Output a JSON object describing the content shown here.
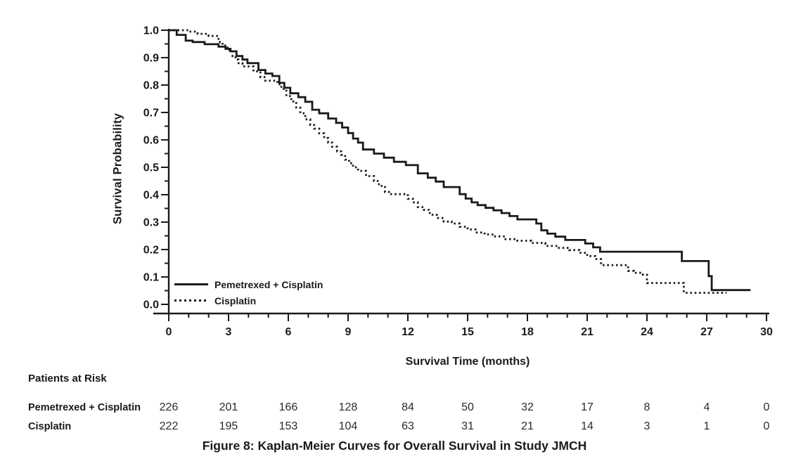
{
  "figure": {
    "caption": "Figure 8: Kaplan-Meier Curves for Overall Survival in Study JMCH"
  },
  "colors": {
    "ink": "#1a1a1a",
    "background": "#ffffff"
  },
  "chart_data": {
    "type": "line",
    "subtype": "kaplan-meier-step",
    "title": "",
    "xlabel": "Survival Time (months)",
    "ylabel": "Survival Probability",
    "xlim": [
      0,
      30
    ],
    "ylim": [
      0.0,
      1.0
    ],
    "x_major_ticks": [
      0,
      3,
      6,
      9,
      12,
      15,
      18,
      21,
      24,
      27,
      30
    ],
    "x_minor_step": 1,
    "y_major_step": 0.1,
    "y_minor_step": 0.05,
    "grid": false,
    "legend_position": "inside-bottom-left",
    "series": [
      {
        "name": "Pemetrexed + Cisplatin",
        "line_style": "solid",
        "color": "#1a1a1a",
        "points": [
          [
            0,
            1.0
          ],
          [
            0.4,
            0.983
          ],
          [
            0.85,
            0.962
          ],
          [
            1.2,
            0.957
          ],
          [
            1.8,
            0.949
          ],
          [
            2.5,
            0.94
          ],
          [
            2.85,
            0.932
          ],
          [
            3.1,
            0.923
          ],
          [
            3.4,
            0.906
          ],
          [
            3.7,
            0.893
          ],
          [
            3.95,
            0.88
          ],
          [
            4.5,
            0.855
          ],
          [
            4.85,
            0.842
          ],
          [
            5.2,
            0.833
          ],
          [
            5.55,
            0.808
          ],
          [
            5.8,
            0.79
          ],
          [
            6.1,
            0.77
          ],
          [
            6.5,
            0.756
          ],
          [
            6.85,
            0.739
          ],
          [
            7.2,
            0.71
          ],
          [
            7.55,
            0.697
          ],
          [
            8.0,
            0.678
          ],
          [
            8.4,
            0.662
          ],
          [
            8.7,
            0.645
          ],
          [
            9.0,
            0.625
          ],
          [
            9.25,
            0.605
          ],
          [
            9.5,
            0.59
          ],
          [
            9.75,
            0.565
          ],
          [
            10.3,
            0.55
          ],
          [
            10.8,
            0.535
          ],
          [
            11.3,
            0.52
          ],
          [
            11.9,
            0.508
          ],
          [
            12.5,
            0.478
          ],
          [
            13.0,
            0.462
          ],
          [
            13.4,
            0.448
          ],
          [
            13.8,
            0.428
          ],
          [
            14.6,
            0.402
          ],
          [
            14.9,
            0.386
          ],
          [
            15.2,
            0.372
          ],
          [
            15.5,
            0.362
          ],
          [
            15.9,
            0.352
          ],
          [
            16.3,
            0.343
          ],
          [
            16.7,
            0.333
          ],
          [
            17.1,
            0.322
          ],
          [
            17.5,
            0.31
          ],
          [
            18.45,
            0.295
          ],
          [
            18.7,
            0.27
          ],
          [
            19.0,
            0.258
          ],
          [
            19.4,
            0.247
          ],
          [
            19.9,
            0.235
          ],
          [
            20.9,
            0.222
          ],
          [
            21.3,
            0.208
          ],
          [
            21.65,
            0.192
          ],
          [
            25.75,
            0.158
          ],
          [
            27.1,
            0.103
          ],
          [
            27.25,
            0.052
          ],
          [
            29.2,
            0.052
          ]
        ]
      },
      {
        "name": "Cisplatin",
        "line_style": "dashed",
        "color": "#1a1a1a",
        "points": [
          [
            0,
            1.0
          ],
          [
            1.0,
            0.995
          ],
          [
            1.45,
            0.987
          ],
          [
            2.0,
            0.979
          ],
          [
            2.5,
            0.957
          ],
          [
            2.7,
            0.944
          ],
          [
            2.95,
            0.927
          ],
          [
            3.2,
            0.906
          ],
          [
            3.35,
            0.893
          ],
          [
            3.5,
            0.88
          ],
          [
            3.7,
            0.868
          ],
          [
            4.25,
            0.85
          ],
          [
            4.6,
            0.829
          ],
          [
            4.85,
            0.816
          ],
          [
            5.45,
            0.803
          ],
          [
            5.65,
            0.786
          ],
          [
            5.9,
            0.76
          ],
          [
            6.15,
            0.74
          ],
          [
            6.4,
            0.718
          ],
          [
            6.6,
            0.697
          ],
          [
            6.85,
            0.675
          ],
          [
            7.1,
            0.654
          ],
          [
            7.3,
            0.641
          ],
          [
            7.55,
            0.624
          ],
          [
            7.8,
            0.607
          ],
          [
            8.0,
            0.59
          ],
          [
            8.2,
            0.575
          ],
          [
            8.45,
            0.558
          ],
          [
            8.65,
            0.545
          ],
          [
            8.85,
            0.528
          ],
          [
            9.05,
            0.515
          ],
          [
            9.25,
            0.5
          ],
          [
            9.5,
            0.487
          ],
          [
            9.9,
            0.468
          ],
          [
            10.3,
            0.45
          ],
          [
            10.55,
            0.432
          ],
          [
            10.85,
            0.41
          ],
          [
            11.05,
            0.402
          ],
          [
            12.0,
            0.385
          ],
          [
            12.25,
            0.372
          ],
          [
            12.5,
            0.355
          ],
          [
            12.8,
            0.345
          ],
          [
            13.1,
            0.327
          ],
          [
            13.45,
            0.315
          ],
          [
            13.8,
            0.302
          ],
          [
            14.2,
            0.295
          ],
          [
            14.6,
            0.283
          ],
          [
            15.0,
            0.273
          ],
          [
            15.4,
            0.262
          ],
          [
            15.85,
            0.255
          ],
          [
            16.3,
            0.248
          ],
          [
            16.9,
            0.238
          ],
          [
            17.5,
            0.232
          ],
          [
            18.2,
            0.224
          ],
          [
            18.9,
            0.213
          ],
          [
            19.5,
            0.206
          ],
          [
            20.1,
            0.198
          ],
          [
            20.6,
            0.188
          ],
          [
            21.0,
            0.176
          ],
          [
            21.4,
            0.165
          ],
          [
            21.7,
            0.143
          ],
          [
            23.05,
            0.122
          ],
          [
            23.35,
            0.115
          ],
          [
            23.8,
            0.108
          ],
          [
            24.0,
            0.078
          ],
          [
            25.85,
            0.042
          ],
          [
            28.0,
            0.042
          ]
        ]
      }
    ]
  },
  "patients_at_risk": {
    "heading": "Patients at Risk",
    "time_points": [
      0,
      3,
      6,
      9,
      12,
      15,
      18,
      21,
      24,
      27,
      30
    ],
    "rows": [
      {
        "label": "Pemetrexed + Cisplatin",
        "counts": [
          226,
          201,
          166,
          128,
          84,
          50,
          32,
          17,
          8,
          4,
          0
        ]
      },
      {
        "label": "Cisplatin",
        "counts": [
          222,
          195,
          153,
          104,
          63,
          31,
          21,
          14,
          3,
          1,
          0
        ]
      }
    ]
  }
}
